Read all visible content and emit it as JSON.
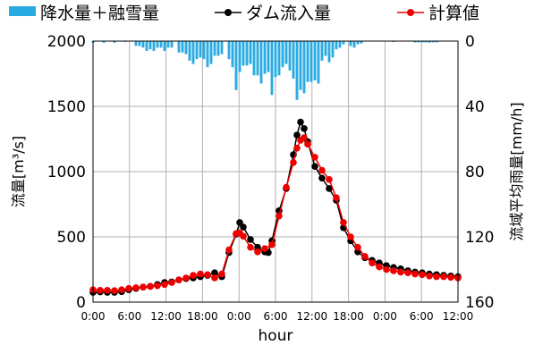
{
  "chart_data": {
    "type": "line",
    "x_tick_labels": [
      "0:00",
      "6:00",
      "12:00",
      "18:00",
      "0:00",
      "6:00",
      "12:00",
      "18:00",
      "0:00",
      "6:00",
      "12:00"
    ],
    "xlabel": "hour",
    "ylabel": "流量[m³/s]",
    "y2label": "流域平均雨量[mm/h]",
    "y_ticks": [
      0,
      500,
      1000,
      1500,
      2000
    ],
    "y2_ticks": [
      0,
      40,
      80,
      120,
      160
    ],
    "ylim": [
      0,
      2000
    ],
    "y2lim": [
      160,
      0
    ],
    "xlim_hours": [
      0,
      102
    ],
    "grid": true,
    "legend_position": "top",
    "legend": {
      "precip": "降水量＋融雪量",
      "observed": "ダム流入量",
      "computed": "計算値"
    },
    "series": [
      {
        "name": "降水量＋融雪量",
        "kind": "bar",
        "axis": "right",
        "color": "#29abe2",
        "points": [
          [
            0,
            1
          ],
          [
            3,
            1
          ],
          [
            6,
            1
          ],
          [
            9,
            0.5
          ],
          [
            12,
            3
          ],
          [
            13,
            3
          ],
          [
            14,
            4
          ],
          [
            15,
            6
          ],
          [
            16,
            5
          ],
          [
            17,
            6
          ],
          [
            18,
            4
          ],
          [
            19,
            4
          ],
          [
            20,
            6
          ],
          [
            21,
            4
          ],
          [
            22,
            4
          ],
          [
            24,
            7
          ],
          [
            25,
            7
          ],
          [
            26,
            8
          ],
          [
            27,
            12
          ],
          [
            28,
            14
          ],
          [
            29,
            11
          ],
          [
            30,
            10
          ],
          [
            31,
            11
          ],
          [
            32,
            16
          ],
          [
            33,
            14
          ],
          [
            34,
            9
          ],
          [
            35,
            9
          ],
          [
            36,
            8
          ],
          [
            38,
            11
          ],
          [
            39,
            16
          ],
          [
            40,
            30
          ],
          [
            41,
            19
          ],
          [
            42,
            15
          ],
          [
            43,
            15
          ],
          [
            44,
            14
          ],
          [
            45,
            21
          ],
          [
            46,
            21
          ],
          [
            47,
            26
          ],
          [
            48,
            20
          ],
          [
            49,
            19
          ],
          [
            50,
            33
          ],
          [
            51,
            22
          ],
          [
            52,
            21
          ],
          [
            53,
            16
          ],
          [
            54,
            14
          ],
          [
            55,
            18
          ],
          [
            56,
            23
          ],
          [
            57,
            36
          ],
          [
            58,
            30
          ],
          [
            59,
            32
          ],
          [
            60,
            25
          ],
          [
            61,
            25
          ],
          [
            62,
            24
          ],
          [
            63,
            26
          ],
          [
            64,
            12
          ],
          [
            65,
            9
          ],
          [
            66,
            13
          ],
          [
            67,
            10
          ],
          [
            68,
            5
          ],
          [
            69,
            4
          ],
          [
            70,
            2
          ],
          [
            72,
            3
          ],
          [
            73,
            4
          ],
          [
            74,
            2
          ],
          [
            75,
            1.5
          ],
          [
            84,
            0.5
          ],
          [
            90,
            0.8
          ],
          [
            91,
            0.8
          ],
          [
            92,
            0.8
          ],
          [
            93,
            0.8
          ],
          [
            94,
            1
          ],
          [
            95,
            0.8
          ],
          [
            96,
            0.8
          ]
        ]
      },
      {
        "name": "ダム流入量",
        "kind": "line",
        "axis": "left",
        "color": "#000000",
        "points": [
          [
            0,
            75
          ],
          [
            2,
            78
          ],
          [
            4,
            75
          ],
          [
            6,
            75
          ],
          [
            8,
            80
          ],
          [
            10,
            95
          ],
          [
            12,
            105
          ],
          [
            14,
            115
          ],
          [
            16,
            120
          ],
          [
            18,
            135
          ],
          [
            20,
            150
          ],
          [
            22,
            155
          ],
          [
            24,
            170
          ],
          [
            26,
            180
          ],
          [
            28,
            185
          ],
          [
            30,
            195
          ],
          [
            32,
            205
          ],
          [
            34,
            225
          ],
          [
            36,
            195
          ],
          [
            38,
            380
          ],
          [
            40,
            520
          ],
          [
            41,
            610
          ],
          [
            42,
            575
          ],
          [
            44,
            480
          ],
          [
            46,
            420
          ],
          [
            48,
            385
          ],
          [
            49,
            380
          ],
          [
            50,
            470
          ],
          [
            52,
            700
          ],
          [
            54,
            870
          ],
          [
            56,
            1130
          ],
          [
            57,
            1280
          ],
          [
            58,
            1380
          ],
          [
            59,
            1330
          ],
          [
            60,
            1230
          ],
          [
            62,
            1040
          ],
          [
            64,
            950
          ],
          [
            66,
            870
          ],
          [
            68,
            780
          ],
          [
            70,
            570
          ],
          [
            72,
            470
          ],
          [
            74,
            385
          ],
          [
            76,
            340
          ],
          [
            78,
            320
          ],
          [
            80,
            300
          ],
          [
            82,
            280
          ],
          [
            84,
            265
          ],
          [
            86,
            255
          ],
          [
            88,
            240
          ],
          [
            90,
            230
          ],
          [
            92,
            225
          ],
          [
            94,
            215
          ],
          [
            96,
            210
          ],
          [
            98,
            205
          ],
          [
            100,
            200
          ],
          [
            102,
            195
          ]
        ]
      },
      {
        "name": "計算値",
        "kind": "line",
        "axis": "left",
        "color": "#ee0000",
        "points": [
          [
            0,
            95
          ],
          [
            2,
            90
          ],
          [
            4,
            90
          ],
          [
            6,
            88
          ],
          [
            8,
            95
          ],
          [
            10,
            105
          ],
          [
            12,
            110
          ],
          [
            14,
            115
          ],
          [
            16,
            120
          ],
          [
            18,
            125
          ],
          [
            20,
            135
          ],
          [
            22,
            150
          ],
          [
            24,
            170
          ],
          [
            26,
            185
          ],
          [
            28,
            205
          ],
          [
            30,
            215
          ],
          [
            32,
            210
          ],
          [
            34,
            185
          ],
          [
            36,
            215
          ],
          [
            38,
            400
          ],
          [
            40,
            525
          ],
          [
            41,
            530
          ],
          [
            42,
            505
          ],
          [
            44,
            420
          ],
          [
            46,
            385
          ],
          [
            48,
            410
          ],
          [
            50,
            440
          ],
          [
            52,
            660
          ],
          [
            54,
            880
          ],
          [
            56,
            1070
          ],
          [
            57,
            1180
          ],
          [
            58,
            1240
          ],
          [
            59,
            1260
          ],
          [
            60,
            1210
          ],
          [
            62,
            1110
          ],
          [
            64,
            1010
          ],
          [
            66,
            940
          ],
          [
            68,
            800
          ],
          [
            70,
            610
          ],
          [
            72,
            500
          ],
          [
            74,
            420
          ],
          [
            76,
            350
          ],
          [
            78,
            300
          ],
          [
            80,
            270
          ],
          [
            82,
            250
          ],
          [
            84,
            240
          ],
          [
            86,
            230
          ],
          [
            88,
            225
          ],
          [
            90,
            215
          ],
          [
            92,
            210
          ],
          [
            94,
            200
          ],
          [
            96,
            195
          ],
          [
            98,
            195
          ],
          [
            100,
            190
          ],
          [
            102,
            185
          ]
        ]
      }
    ]
  }
}
